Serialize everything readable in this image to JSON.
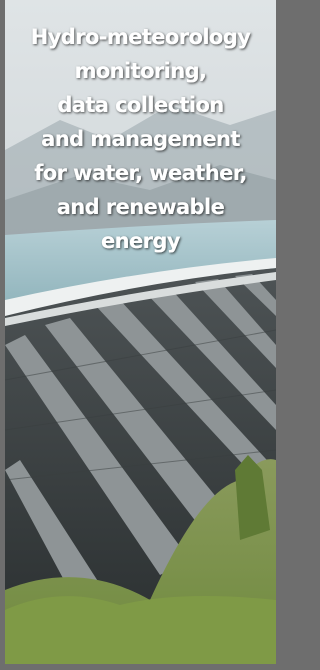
{
  "banner": {
    "lines": [
      "Hydro-meteorology",
      "monitoring,",
      "data collection",
      "and management",
      "for water, weather,",
      "and renewable",
      "energy"
    ]
  }
}
